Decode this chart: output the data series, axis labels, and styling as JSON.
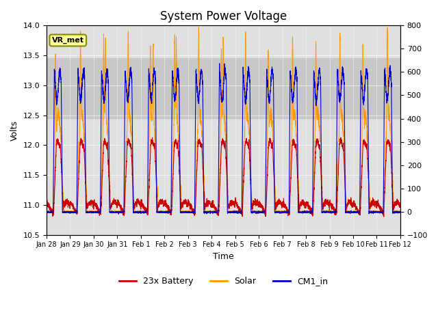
{
  "title": "System Power Voltage",
  "xlabel": "Time",
  "ylabel_left": "Volts",
  "ylim_left": [
    10.5,
    14.0
  ],
  "ylim_right": [
    -100,
    800
  ],
  "yticks_left": [
    10.5,
    11.0,
    11.5,
    12.0,
    12.5,
    13.0,
    13.5,
    14.0
  ],
  "yticks_right": [
    -100,
    0,
    100,
    200,
    300,
    400,
    500,
    600,
    700,
    800
  ],
  "background_color": "#ffffff",
  "plot_bg_color": "#e0e0e0",
  "shaded_region": [
    12.45,
    13.45
  ],
  "shaded_color": "#c8c8c8",
  "annotation_box": "VR_met",
  "annotation_box_color": "#ffff99",
  "annotation_box_border": "#888800",
  "colors": {
    "battery": "#cc0000",
    "solar": "#ff9900",
    "cm1": "#0000cc"
  },
  "legend_labels": [
    "23x Battery",
    "Solar",
    "CM1_in"
  ],
  "xtick_labels": [
    "Jan 28",
    "Jan 29",
    "Jan 30",
    "Jan 31",
    "Feb 1",
    "Feb 2",
    "Feb 3",
    "Feb 4",
    "Feb 5",
    "Feb 6",
    "Feb 7",
    "Feb 8",
    "Feb 9",
    "Feb 10",
    "Feb 11",
    "Feb 12"
  ],
  "title_fontsize": 12,
  "label_fontsize": 9,
  "tick_fontsize": 8
}
